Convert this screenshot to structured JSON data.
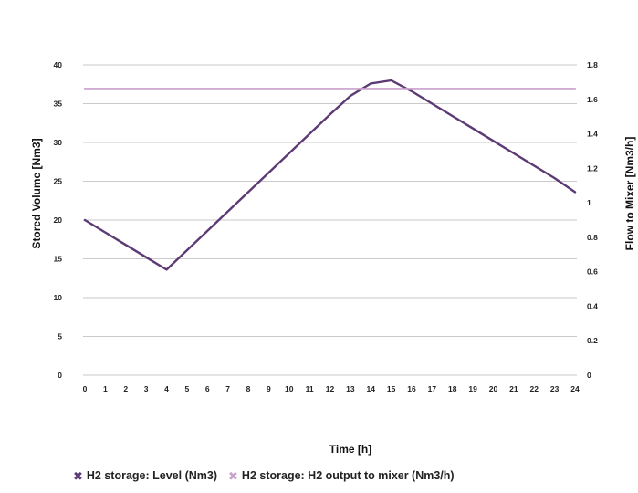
{
  "chart_data": {
    "type": "line",
    "xlabel": "Time [h]",
    "ylabel_left": "Stored Volume [Nm3]",
    "ylabel_right": "Flow to Mixer [Nm3/h]",
    "x": [
      0,
      1,
      2,
      3,
      4,
      5,
      6,
      7,
      8,
      9,
      10,
      11,
      12,
      13,
      14,
      15,
      16,
      17,
      18,
      19,
      20,
      21,
      22,
      23,
      24
    ],
    "ylim_left": [
      0,
      40
    ],
    "yticks_left": [
      0,
      5,
      10,
      15,
      20,
      25,
      30,
      35,
      40
    ],
    "ylim_right": [
      0,
      1.8
    ],
    "yticks_right": [
      0,
      0.2,
      0.4,
      0.6,
      0.8,
      1,
      1.2,
      1.4,
      1.6,
      1.8
    ],
    "grid": true,
    "legend_position": "bottom-left",
    "series": [
      {
        "name": "H2 storage: Level (Nm3)",
        "axis": "left",
        "color": "#5c3a73",
        "values": [
          20,
          18.4,
          16.8,
          15.2,
          13.6,
          16.1,
          18.6,
          21.1,
          23.6,
          26.1,
          28.6,
          31.1,
          33.6,
          36.0,
          37.6,
          38.0,
          36.6,
          35.0,
          33.4,
          31.8,
          30.2,
          28.6,
          27.0,
          25.4,
          23.6
        ]
      },
      {
        "name": "H2 storage: H2 output to mixer (Nm3/h)",
        "axis": "right",
        "color": "#c9a0cc",
        "values": [
          1.66,
          1.66,
          1.66,
          1.66,
          1.66,
          1.66,
          1.66,
          1.66,
          1.66,
          1.66,
          1.66,
          1.66,
          1.66,
          1.66,
          1.66,
          1.66,
          1.66,
          1.66,
          1.66,
          1.66,
          1.66,
          1.66,
          1.66,
          1.66,
          1.66
        ]
      }
    ]
  },
  "legend": {
    "marker_glyph": "✖",
    "items": [
      {
        "label": "H2 storage: Level (Nm3)",
        "color": "#5c3a73"
      },
      {
        "label": "H2 storage: H2 output to mixer (Nm3/h)",
        "color": "#c9a0cc"
      }
    ]
  }
}
